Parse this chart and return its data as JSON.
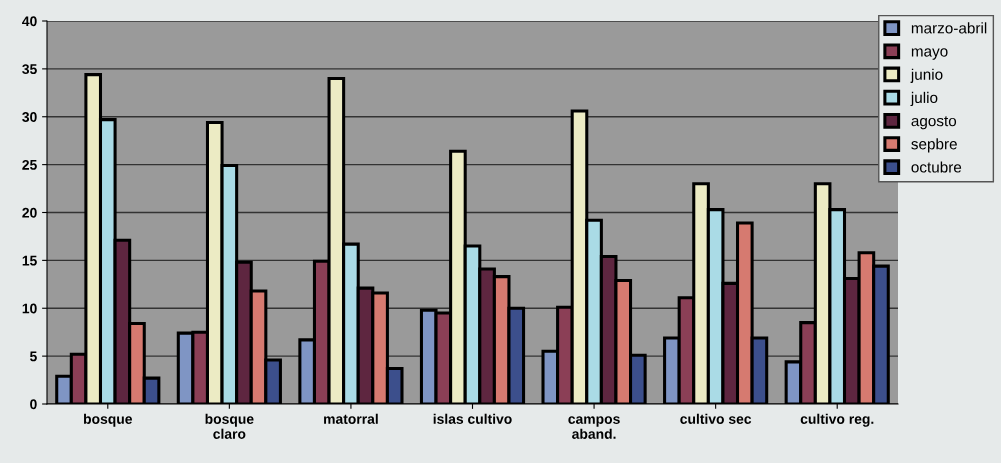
{
  "chart_data": {
    "type": "bar",
    "categories": [
      "bosque",
      "bosque\nclaro",
      "matorral",
      "islas cultivo",
      "campos\naband.",
      "cultivo sec",
      "cultivo reg."
    ],
    "series": [
      {
        "name": "marzo-abril",
        "color": "#7f95c4",
        "values": [
          2.9,
          7.4,
          6.7,
          9.8,
          5.5,
          6.9,
          4.4
        ]
      },
      {
        "name": "mayo",
        "color": "#8b3f56",
        "values": [
          5.2,
          7.5,
          14.9,
          9.5,
          10.1,
          11.1,
          8.5
        ]
      },
      {
        "name": "junio",
        "color": "#ecebc4",
        "values": [
          34.4,
          29.4,
          34.0,
          26.4,
          30.6,
          23.0,
          23.0
        ]
      },
      {
        "name": "julio",
        "color": "#aadbe6",
        "values": [
          29.7,
          24.9,
          16.7,
          16.5,
          19.2,
          20.3,
          20.3
        ]
      },
      {
        "name": "agosto",
        "color": "#5e2640",
        "values": [
          17.1,
          14.8,
          12.1,
          14.1,
          15.4,
          12.6,
          13.1
        ]
      },
      {
        "name": "sepbre",
        "color": "#d67a70",
        "values": [
          8.4,
          11.8,
          11.6,
          13.3,
          12.9,
          18.9,
          15.8
        ]
      },
      {
        "name": "octubre",
        "color": "#3c4f8c",
        "values": [
          2.7,
          4.6,
          3.7,
          10.0,
          5.1,
          6.9,
          14.4
        ]
      }
    ],
    "ylim": [
      0,
      40
    ],
    "yticks": [
      0,
      5,
      10,
      15,
      20,
      25,
      30,
      35,
      40
    ],
    "grid": "y",
    "legend": "top right"
  }
}
